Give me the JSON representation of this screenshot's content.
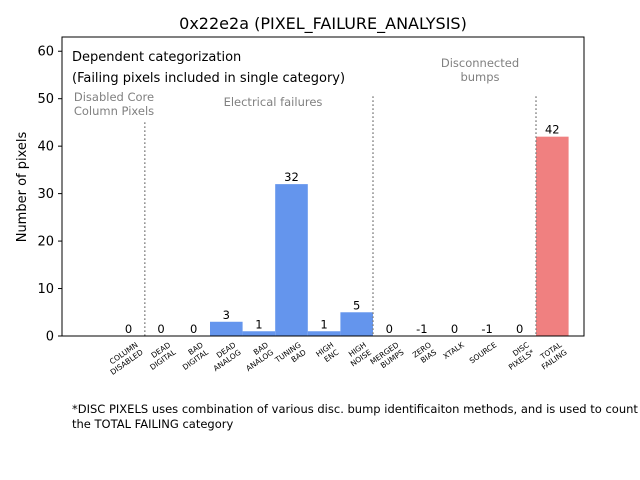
{
  "chart_data": {
    "type": "bar",
    "title": "0x22e2a (PIXEL_FAILURE_ANALYSIS)",
    "xlabel": "",
    "ylabel": "Number of pixels",
    "ylim": [
      0,
      63
    ],
    "yticks": [
      0,
      10,
      20,
      30,
      40,
      50,
      60
    ],
    "categories": [
      "COLUMN\nDISABLED",
      "DEAD\nDIGITAL",
      "BAD\nDIGITAL",
      "DEAD\nANALOG",
      "BAD\nANALOG",
      "TUNING\nBAD",
      "HIGH\nENC",
      "HIGH\nNOISE",
      "MERGED\nBUMPS",
      "ZERO\nBIAS",
      "XTALK",
      "SOURCE",
      "DISC\nPIXELS*",
      "TOTAL\nFAILING"
    ],
    "values": [
      0,
      0,
      0,
      3,
      1,
      32,
      1,
      5,
      0,
      -1,
      0,
      -1,
      0,
      42
    ],
    "bar_colors": [
      "#6495ed",
      "#6495ed",
      "#6495ed",
      "#6495ed",
      "#6495ed",
      "#6495ed",
      "#6495ed",
      "#6495ed",
      "#6495ed",
      "#6495ed",
      "#6495ed",
      "#6495ed",
      "#6495ed",
      "#f08080"
    ],
    "group_labels": {
      "disabled": "Disabled Core\nColumn Pixels",
      "electrical": "Electrical failures",
      "disconnected": "Disconnected\nbumps"
    },
    "annotation_title": "Dependent categorization",
    "annotation_subtitle": "(Failing pixels included in single category)",
    "grid": false
  },
  "footnote": "*DISC PIXELS uses combination of various disc. bump identificaiton methods, and is used to count the TOTAL FAILING category",
  "colors": {
    "bar": "#6495ed",
    "total": "#f08080",
    "divider": "#808080",
    "group_text": "#808080"
  }
}
